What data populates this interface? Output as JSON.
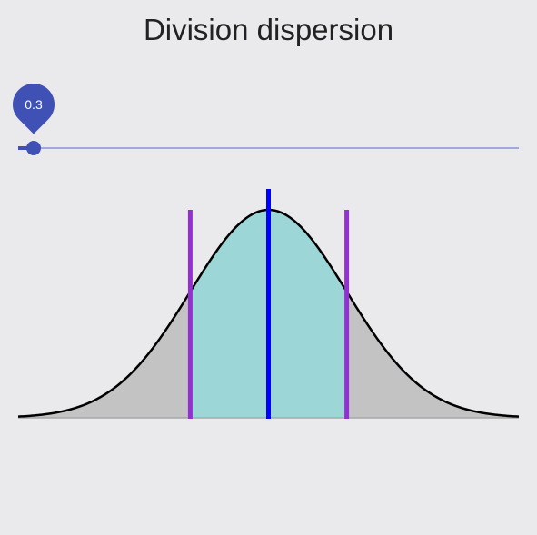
{
  "title": "Division dispersion",
  "slider": {
    "value": 0.3,
    "value_label": "0.3",
    "min": 0,
    "max": 10
  },
  "colors": {
    "accent": "#3f51b5",
    "rail": "#9fa8da",
    "fill_center": "#9cd6d6",
    "fill_tails": "#c3c3c3",
    "mean_line": "#0000ff",
    "bound_lines": "#9331d0",
    "curve": "#000000"
  },
  "chart_data": {
    "type": "area",
    "distribution": "normal",
    "mean": 0,
    "sd": 1,
    "xlim": [
      -3.2,
      3.2
    ],
    "shaded_interval": [
      -1,
      1
    ],
    "markers": [
      {
        "role": "lower-bound",
        "x": -1
      },
      {
        "role": "mean",
        "x": 0
      },
      {
        "role": "upper-bound",
        "x": 1
      }
    ],
    "grid": false
  }
}
